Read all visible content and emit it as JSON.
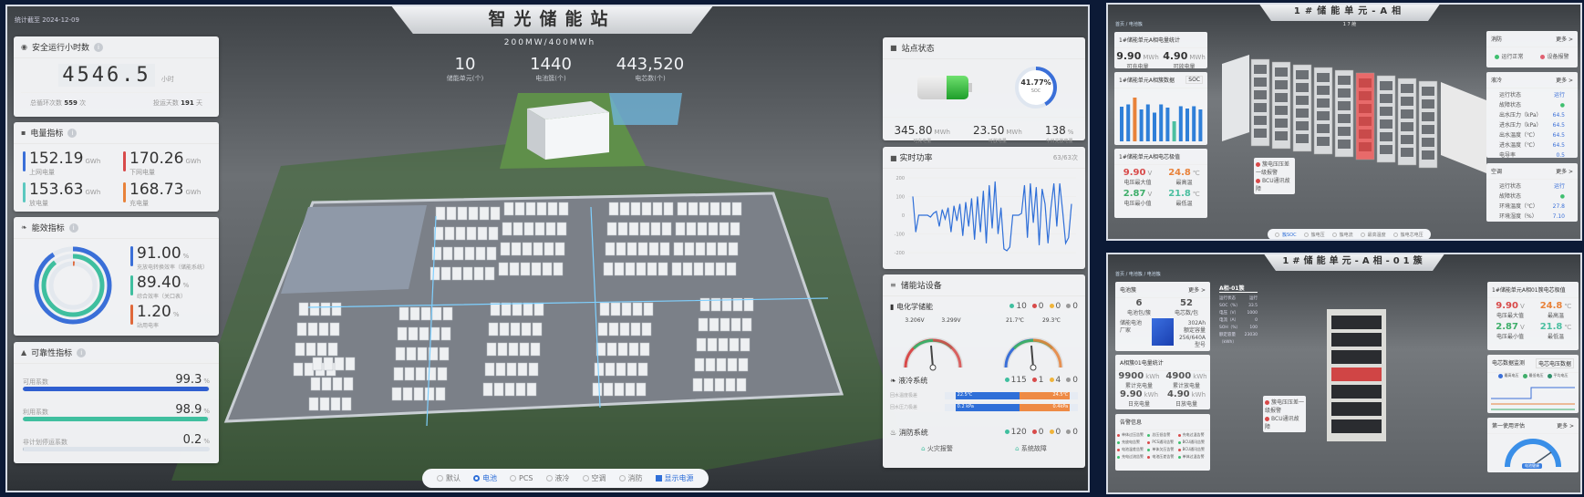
{
  "main": {
    "stat_date": "统计截至 2024-12-09",
    "title": "智光储能站",
    "subtitle": "200MW/400MWh",
    "stats": [
      {
        "value": "10",
        "label": "储能单元(个)"
      },
      {
        "value": "1440",
        "label": "电池簇(个)"
      },
      {
        "value": "443,520",
        "label": "电芯数(个)"
      }
    ],
    "safe_hours": {
      "title": "安全运行小时数",
      "value": "4546.5",
      "unit": "小时",
      "cycles_label": "总循环次数",
      "cycles": "559",
      "cycles_unit": "次",
      "days_label": "投运天数",
      "days": "191",
      "days_unit": "天"
    },
    "energy": {
      "title": "电量指标",
      "items": [
        {
          "value": "152.19",
          "unit": "GWh",
          "label": "上网电量",
          "color": "#3a6fd8"
        },
        {
          "value": "170.26",
          "unit": "GWh",
          "label": "下网电量",
          "color": "#d84a4a"
        },
        {
          "value": "153.63",
          "unit": "GWh",
          "label": "放电量",
          "color": "#5cc8c0"
        },
        {
          "value": "168.73",
          "unit": "GWh",
          "label": "充电量",
          "color": "#e8823a"
        }
      ]
    },
    "efficiency": {
      "title": "能效指标",
      "items": [
        {
          "value": "91.00",
          "unit": "%",
          "label": "充放电转换效率（储能系统）",
          "color": "#3a6fd8",
          "pct": 91
        },
        {
          "value": "89.40",
          "unit": "%",
          "label": "综合效率（关口表）",
          "color": "#3fbf9f",
          "pct": 89.4
        },
        {
          "value": "1.20",
          "unit": "%",
          "label": "站用电率",
          "color": "#e0683a",
          "pct": 1.2
        }
      ]
    },
    "reliability": {
      "title": "可靠性指标",
      "items": [
        {
          "label": "可用系数",
          "value": "99.3",
          "unit": "%",
          "pct": 99.3,
          "color": "#2f5fd0"
        },
        {
          "label": "利用系数",
          "value": "98.9",
          "unit": "%",
          "pct": 98.9,
          "color": "#3fbf9f"
        },
        {
          "label": "非计划停运系数",
          "value": "0.2",
          "unit": "%",
          "pct": 0.2,
          "color": "#b9c2cc"
        }
      ]
    },
    "station": {
      "title": "站点状态",
      "soc": "41.77%",
      "soc_label": "SOC",
      "soc_pct": 41.77,
      "items": [
        {
          "value": "345.80",
          "unit": "MWh",
          "label": "可充电量"
        },
        {
          "value": "23.50",
          "unit": "MWh",
          "label": "可放电量"
        },
        {
          "value": "138",
          "unit": "%",
          "label": "今日充放电量"
        }
      ]
    },
    "power": {
      "title": "实时功率",
      "count": "63/63次",
      "chart_data": {
        "type": "line",
        "ylim": [
          -200,
          200
        ],
        "yticks": [
          "200",
          "100",
          "0",
          "-100",
          "-200"
        ],
        "values": [
          100,
          -90,
          0,
          0,
          0,
          0,
          -10,
          10,
          20,
          -60,
          30,
          -20,
          40,
          -90,
          50,
          -30,
          60,
          -110,
          70,
          -60,
          90,
          -130,
          100,
          -90,
          130,
          -150,
          160,
          -70,
          180,
          -100,
          40,
          -180,
          -190,
          -170,
          0,
          0,
          0,
          10,
          160,
          -120,
          170,
          -40,
          150,
          -160,
          140,
          60,
          -150,
          40,
          170,
          -60,
          170,
          20,
          -150,
          -120,
          60
        ]
      }
    },
    "equipment": {
      "title": "储能站设备",
      "bess": {
        "title": "电化学储能",
        "counts": [
          "10",
          "0",
          "0",
          "0"
        ],
        "v_min": "3.206V",
        "v_max": "3.299V",
        "t_min": "21.7℃",
        "t_max": "29.3℃"
      },
      "cooling": {
        "title": "液冷系统",
        "counts": [
          "115",
          "1",
          "4",
          "0"
        ],
        "rows": [
          {
            "label": "回水温度极差",
            "left": "22.5℃",
            "right": "24.5℃"
          },
          {
            "label": "回水压力极差",
            "left": "0.2 kPa",
            "right": "0.4kPa"
          }
        ]
      },
      "fire": {
        "title": "消防系统",
        "counts": [
          "120",
          "0",
          "0",
          "0"
        ],
        "alarm": "火灾报警",
        "fault": "系统故障"
      }
    },
    "status_colors": [
      "#3fbf9f",
      "#d84a4a",
      "#f0b43a",
      "#999999"
    ],
    "toolbar": {
      "items": [
        "默认",
        "电池",
        "PCS",
        "液冷",
        "空调",
        "消防"
      ],
      "selected": "电池",
      "checkbox": "显示电源",
      "checked": true
    }
  },
  "unit_view": {
    "breadcrumb": "首页 / 电池簇",
    "title": "1#储能单元-A相",
    "sub": "1 7 舱",
    "energy": {
      "title": "1#储能单元A相电量统计",
      "items": [
        {
          "value": "9.90",
          "unit": "MWh",
          "label": "可充电量"
        },
        {
          "value": "4.90",
          "unit": "MWh",
          "label": "可放电量"
        }
      ]
    },
    "bars": {
      "title": "1#储能单元A相簇数据",
      "select": "SOC",
      "values": [
        760,
        810,
        960,
        700,
        810,
        630,
        810,
        740,
        440,
        770,
        720,
        770,
        700
      ],
      "highlight": {
        "2": "#e8823a",
        "8": "#4bbfa0"
      }
    },
    "extremes": {
      "title": "1#储能单元A相电芯极值",
      "items": [
        {
          "value": "9.90",
          "unit": "V",
          "label": "电压最大值",
          "color": "#d84a4a"
        },
        {
          "value": "24.8",
          "unit": "℃",
          "label": "最高温",
          "color": "#e8823a"
        },
        {
          "value": "2.87",
          "unit": "V",
          "label": "电压最小值",
          "color": "#3fae6a"
        },
        {
          "value": "21.8",
          "unit": "℃",
          "label": "最低温",
          "color": "#4bbfa0"
        }
      ]
    },
    "alerts": [
      "簇电压压差一级报警",
      "BCU通讯故障"
    ],
    "fire": {
      "title": "消防",
      "more": "更多 >",
      "ok": "运行正常",
      "alarm": "设备报警"
    },
    "cooling": {
      "title": "液冷",
      "more": "更多 >",
      "rows": [
        [
          "运行状态",
          "运行"
        ],
        [
          "故障状态",
          "●"
        ],
        [
          "出水压力（kPa）",
          "64.5"
        ],
        [
          "进水压力（kPa）",
          "64.5"
        ],
        [
          "出水温度（℃）",
          "64.5"
        ],
        [
          "进水温度（℃）",
          "64.5"
        ],
        [
          "电导率",
          "0.5"
        ]
      ]
    },
    "ac": {
      "title": "空调",
      "more": "更多 >",
      "rows": [
        [
          "运行状态",
          "运行"
        ],
        [
          "故障状态",
          "●"
        ],
        [
          "环境温度（℃）",
          "27.8"
        ],
        [
          "环境湿度（%）",
          "7.10"
        ]
      ]
    },
    "tabs": [
      "簇SOC",
      "簇电压",
      "簇电流",
      "最高温度",
      "簇电芯电压"
    ]
  },
  "cluster_view": {
    "breadcrumb": "首页 / 电池簇 / 电池簇",
    "title": "1#储能单元-A相-01簇",
    "cells": {
      "title": "电池簇",
      "more": "更多 >",
      "a": "6",
      "a_label": "电池包/簇",
      "b": "52",
      "b_label": "电芯数/包",
      "type_label": "储能电池",
      "maker": "厂家",
      "cap": "302Ah",
      "cap_label": "额定容量",
      "v": "256/640A",
      "v_label": "型号"
    },
    "stats": {
      "title": "A相簇01电量统计",
      "items": [
        {
          "value": "9900",
          "unit": "kWh",
          "label": "累计充电量"
        },
        {
          "value": "4900",
          "unit": "kWh",
          "label": "累计放电量"
        },
        {
          "value": "9.90",
          "unit": "kWh",
          "label": "日充电量"
        },
        {
          "value": "4.90",
          "unit": "kWh",
          "label": "日放电量"
        }
      ]
    },
    "alarms": {
      "title": "告警信息",
      "items": [
        "单体过压告警",
        "总压低告警",
        "充电过温告警",
        "充放电告警",
        "PCS通讯告警",
        "BCU通讯告警",
        "电池温差告警",
        "单体欠压告警",
        "BCU通讯告警",
        "充电过流告警",
        "电池压差告警",
        "单体过温告警"
      ]
    },
    "info": {
      "title": "A相-01簇",
      "rows": [
        [
          "运行状态",
          "运行"
        ],
        [
          "SOC（%）",
          "33.5"
        ],
        [
          "电压（V）",
          "1000"
        ],
        [
          "电流（A）",
          "0"
        ],
        [
          "SOH（%）",
          "100"
        ],
        [
          "额定容量（kWh）",
          "23030"
        ]
      ]
    },
    "extremes": {
      "title": "1#储能单元A相01簇电芯极值",
      "items": [
        {
          "value": "9.90",
          "unit": "V",
          "label": "电压最大值",
          "color": "#d84a4a"
        },
        {
          "value": "24.8",
          "unit": "℃",
          "label": "最高温",
          "color": "#e8823a"
        },
        {
          "value": "2.87",
          "unit": "V",
          "label": "电压最小值",
          "color": "#3fae6a"
        },
        {
          "value": "21.8",
          "unit": "℃",
          "label": "最低温",
          "color": "#4bbfa0"
        }
      ]
    },
    "trend": {
      "title": "电芯数据监测",
      "select": "电芯电压数据",
      "legend": [
        "最高电压",
        "最低电压",
        "平均电压"
      ]
    },
    "health": {
      "title": "第一使用评估",
      "more": "更多 >",
      "badge": "电池健康"
    },
    "alerts": [
      "簇电压压差一级报警",
      "BCU通讯故障"
    ]
  }
}
